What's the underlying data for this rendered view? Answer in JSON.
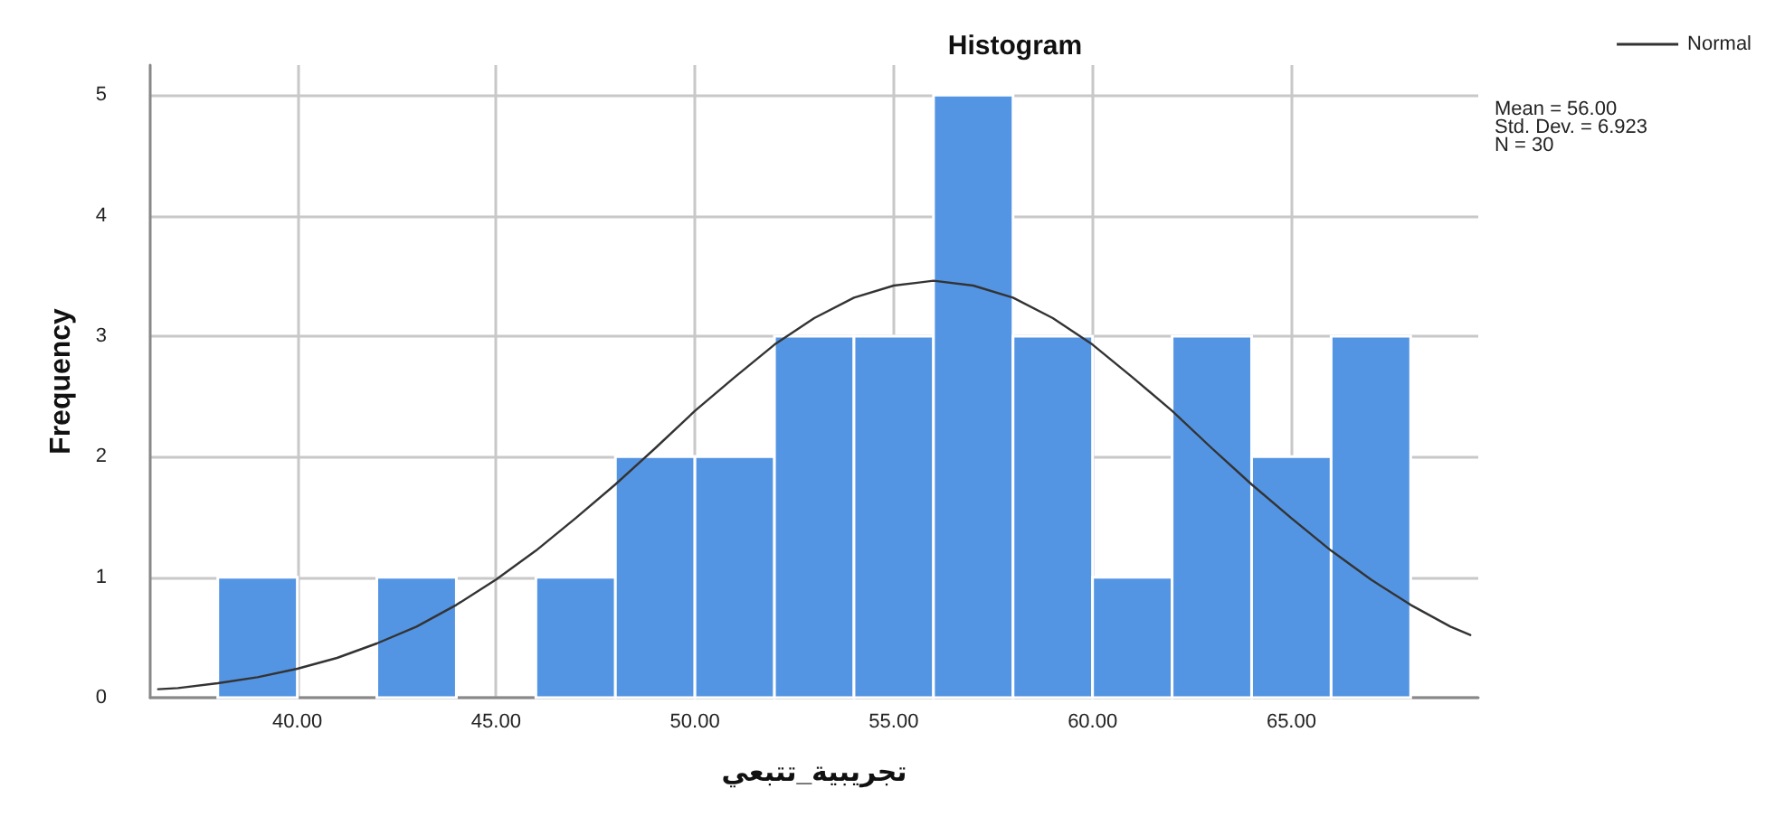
{
  "chart_data": {
    "type": "histogram",
    "title": "Histogram",
    "xlabel": "تجريبية_تتبعي",
    "ylabel": "Frequency",
    "annotations": [
      "Mean = 56.00",
      "Std. Dev. = 6.923",
      "N = 30"
    ],
    "xlim": [
      36.3,
      69.7
    ],
    "xticks": [
      {
        "value": 40,
        "label": "40.00"
      },
      {
        "value": 45,
        "label": "45.00"
      },
      {
        "value": 50,
        "label": "50.00"
      },
      {
        "value": 55,
        "label": "55.00"
      },
      {
        "value": 60,
        "label": "60.00"
      },
      {
        "value": 65,
        "label": "65.00"
      }
    ],
    "ylim": [
      0,
      5.25
    ],
    "yticks": [
      0,
      1,
      2,
      3,
      4,
      5
    ],
    "grid": true,
    "legend": "top right",
    "marker": "none",
    "line_style": "solid",
    "series": [
      {
        "color": "#5495e3",
        "bins": [
          38,
          40,
          42,
          44,
          46,
          48,
          50,
          52,
          54,
          56,
          58,
          60,
          62,
          64,
          66,
          68
        ],
        "values": [
          1,
          0,
          1,
          0,
          1,
          2,
          2,
          3,
          3,
          5,
          3,
          1,
          3,
          2,
          3
        ]
      },
      {
        "type": "line",
        "name": "Normal",
        "color": "#333333",
        "x": [
          36.5,
          37,
          38,
          39,
          40,
          41,
          42,
          43,
          44,
          45,
          46,
          47,
          48,
          49,
          50,
          51,
          52,
          53,
          54,
          55,
          56,
          57,
          58,
          59,
          60,
          61,
          62,
          63,
          64,
          65,
          66,
          67,
          68,
          69,
          69.5
        ],
        "values": [
          0.07,
          0.08,
          0.12,
          0.17,
          0.24,
          0.33,
          0.45,
          0.59,
          0.77,
          0.98,
          1.22,
          1.49,
          1.77,
          2.07,
          2.38,
          2.66,
          2.93,
          3.15,
          3.32,
          3.42,
          3.46,
          3.42,
          3.32,
          3.15,
          2.93,
          2.66,
          2.38,
          2.07,
          1.77,
          1.49,
          1.22,
          0.98,
          0.77,
          0.59,
          0.52
        ]
      }
    ]
  }
}
